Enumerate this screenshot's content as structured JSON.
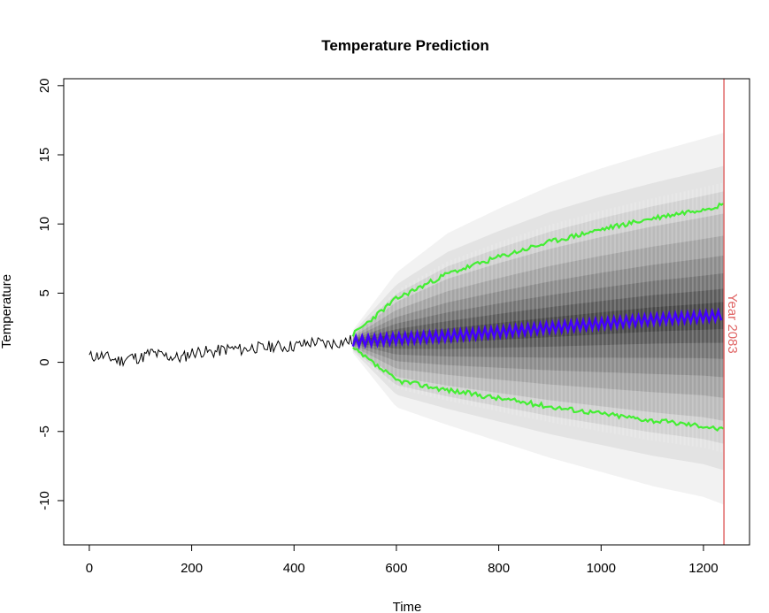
{
  "chart_data": {
    "type": "line",
    "title": "Temperature Prediction",
    "xlabel": "Time",
    "ylabel": "Temperature",
    "xlim": [
      -50,
      1290
    ],
    "ylim": [
      -13.2,
      20.5
    ],
    "x_ticks": [
      0,
      200,
      400,
      600,
      800,
      1000,
      1200
    ],
    "y_ticks": [
      -10,
      -5,
      0,
      5,
      10,
      15,
      20
    ],
    "grid": false,
    "legend": "none",
    "series": [
      {
        "role": "observed",
        "color": "#000000",
        "x": [
          0,
          20,
          40,
          60,
          80,
          100,
          120,
          140,
          160,
          180,
          200,
          220,
          240,
          260,
          280,
          300,
          320,
          340,
          360,
          380,
          400,
          420,
          440,
          460,
          480,
          500,
          515
        ],
        "y": [
          0.4,
          0.5,
          0.3,
          0.1,
          0.4,
          0.3,
          0.7,
          0.5,
          0.4,
          0.3,
          0.7,
          0.8,
          0.7,
          0.9,
          1.0,
          0.9,
          1.1,
          1.0,
          1.2,
          1.1,
          1.2,
          1.3,
          1.5,
          1.3,
          1.4,
          1.5,
          1.6
        ]
      },
      {
        "role": "forecast-mean",
        "color": "#4400ff",
        "x": [
          515,
          600,
          700,
          800,
          900,
          1000,
          1100,
          1200,
          1240
        ],
        "y": [
          1.5,
          1.7,
          1.9,
          2.2,
          2.5,
          2.8,
          3.1,
          3.3,
          3.4
        ]
      },
      {
        "role": "upper-bound",
        "color": "#44ee33",
        "x": [
          515,
          600,
          700,
          800,
          900,
          1000,
          1100,
          1200,
          1240
        ],
        "y": [
          2.0,
          4.6,
          6.4,
          7.6,
          8.7,
          9.6,
          10.4,
          11.1,
          11.4
        ]
      },
      {
        "role": "lower-bound",
        "color": "#44ee33",
        "x": [
          515,
          600,
          700,
          800,
          900,
          1000,
          1100,
          1200,
          1240
        ],
        "y": [
          1.0,
          -1.3,
          -2.0,
          -2.6,
          -3.2,
          -3.7,
          -4.2,
          -4.6,
          -4.9
        ]
      }
    ],
    "reference_line": {
      "x": 1240,
      "color": "#e06666",
      "label": "Year 2083"
    }
  }
}
